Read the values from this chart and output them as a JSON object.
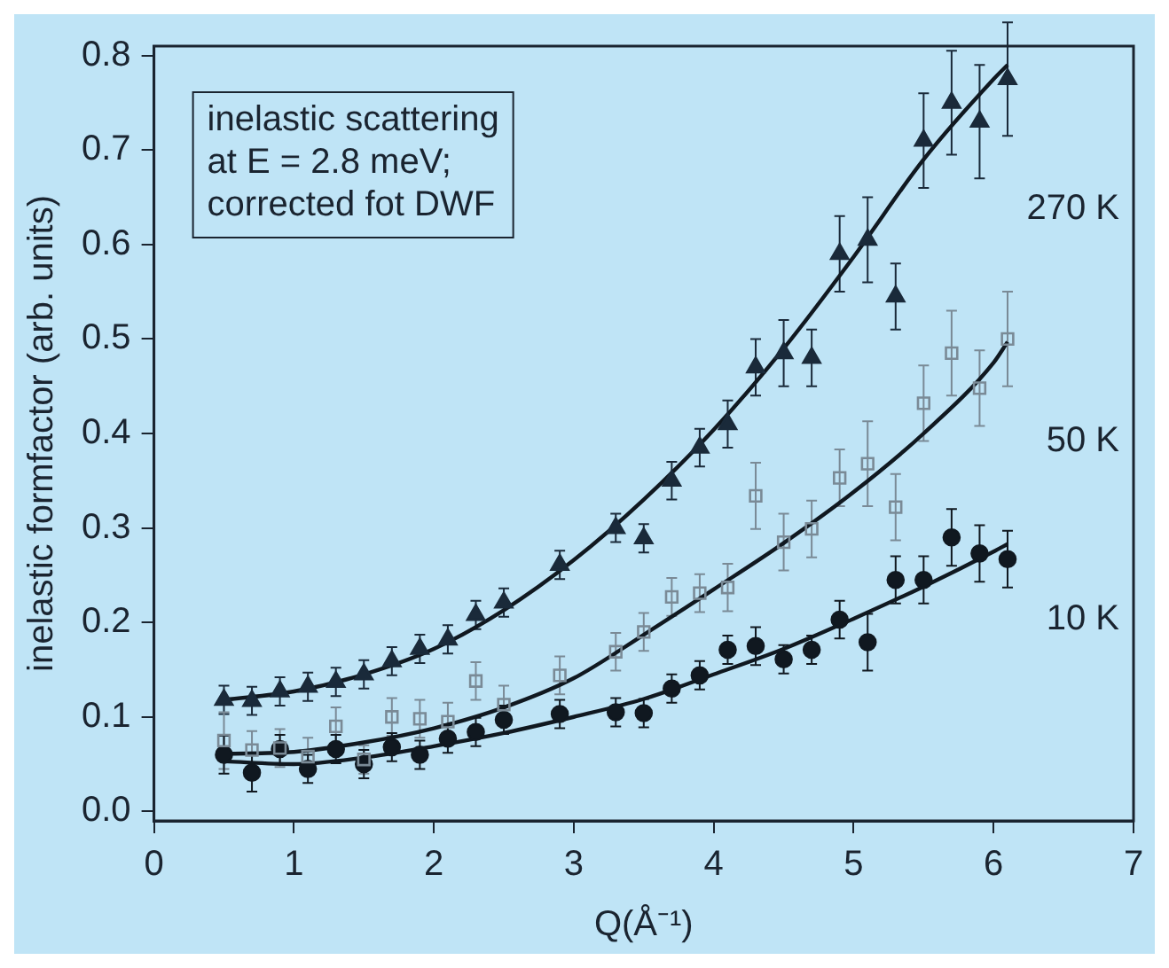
{
  "chart_data": {
    "type": "scatter",
    "xlabel": "Q(Å⁻¹)",
    "ylabel": "inelastic formfactor (arb. units)",
    "xlim": [
      0,
      7
    ],
    "xticks": [
      0,
      1,
      2,
      3,
      4,
      5,
      6,
      7
    ],
    "ylim": [
      -0.01,
      0.81
    ],
    "yticks": [
      {
        "value": 0,
        "label": "0.0"
      },
      0.1,
      0.2,
      0.3,
      0.4,
      0.5,
      0.6,
      0.7,
      0.8
    ],
    "grid": false,
    "legend": false,
    "annotations": [
      "inelastic scattering\nat E = 2.8 meV;\ncorrected fot DWF",
      "270 K",
      "50 K",
      "10 K"
    ],
    "series": [
      {
        "marker": "triangle",
        "color": "#1a2a3a",
        "x": [
          0.5,
          0.7,
          0.9,
          1.1,
          1.3,
          1.5,
          1.7,
          1.9,
          2.1,
          2.3,
          2.5,
          2.9,
          3.3,
          3.5,
          3.7,
          3.9,
          4.1,
          4.3,
          4.5,
          4.7,
          4.9,
          5.1,
          5.3,
          5.5,
          5.7,
          5.9,
          6.1
        ],
        "values": [
          0.118,
          0.117,
          0.127,
          0.132,
          0.137,
          0.145,
          0.159,
          0.172,
          0.182,
          0.208,
          0.221,
          0.261,
          0.3,
          0.289,
          0.35,
          0.385,
          0.41,
          0.47,
          0.485,
          0.48,
          0.59,
          0.605,
          0.545,
          0.71,
          0.75,
          0.73,
          0.775
        ],
        "errors": [
          0.015,
          0.015,
          0.015,
          0.015,
          0.015,
          0.015,
          0.015,
          0.015,
          0.015,
          0.015,
          0.015,
          0.015,
          0.015,
          0.015,
          0.02,
          0.02,
          0.025,
          0.03,
          0.035,
          0.03,
          0.04,
          0.045,
          0.035,
          0.05,
          0.055,
          0.06,
          0.06
        ]
      },
      {
        "marker": "square",
        "color": "#7a8a96",
        "x": [
          0.5,
          0.7,
          0.9,
          1.1,
          1.3,
          1.5,
          1.7,
          1.9,
          2.1,
          2.3,
          2.5,
          2.9,
          3.3,
          3.5,
          3.7,
          3.9,
          4.1,
          4.3,
          4.5,
          4.7,
          4.9,
          5.1,
          5.3,
          5.5,
          5.7,
          5.9,
          6.1
        ],
        "values": [
          0.075,
          0.065,
          0.067,
          0.058,
          0.09,
          0.055,
          0.1,
          0.098,
          0.095,
          0.138,
          0.113,
          0.144,
          0.169,
          0.19,
          0.227,
          0.231,
          0.237,
          0.334,
          0.285,
          0.299,
          0.353,
          0.368,
          0.322,
          0.432,
          0.485,
          0.448,
          0.5
        ],
        "errors": [
          0.03,
          0.02,
          0.02,
          0.02,
          0.02,
          0.015,
          0.02,
          0.02,
          0.02,
          0.02,
          0.02,
          0.02,
          0.02,
          0.02,
          0.02,
          0.02,
          0.025,
          0.035,
          0.03,
          0.03,
          0.03,
          0.045,
          0.035,
          0.04,
          0.045,
          0.04,
          0.05
        ]
      },
      {
        "marker": "circle",
        "color": "#101820",
        "x": [
          0.5,
          0.7,
          0.9,
          1.1,
          1.3,
          1.5,
          1.7,
          1.9,
          2.1,
          2.3,
          2.5,
          2.9,
          3.3,
          3.5,
          3.7,
          3.9,
          4.1,
          4.3,
          4.5,
          4.7,
          4.9,
          5.1,
          5.3,
          5.5,
          5.7,
          5.9,
          6.1
        ],
        "values": [
          0.06,
          0.041,
          0.066,
          0.045,
          0.066,
          0.05,
          0.068,
          0.06,
          0.077,
          0.084,
          0.097,
          0.103,
          0.105,
          0.104,
          0.13,
          0.144,
          0.171,
          0.175,
          0.161,
          0.171,
          0.203,
          0.179,
          0.245,
          0.245,
          0.29,
          0.273,
          0.267
        ],
        "errors": [
          0.02,
          0.02,
          0.015,
          0.015,
          0.015,
          0.015,
          0.015,
          0.015,
          0.015,
          0.015,
          0.015,
          0.015,
          0.015,
          0.015,
          0.015,
          0.015,
          0.015,
          0.02,
          0.015,
          0.015,
          0.02,
          0.03,
          0.025,
          0.025,
          0.03,
          0.03,
          0.03
        ]
      },
      {
        "type": "line",
        "color": "#101820",
        "x": [
          0.5,
          1,
          1.5,
          2,
          2.5,
          3,
          3.5,
          4,
          4.5,
          5,
          5.5,
          6,
          6.1
        ],
        "values": [
          0.118,
          0.127,
          0.145,
          0.172,
          0.213,
          0.266,
          0.33,
          0.404,
          0.49,
          0.587,
          0.69,
          0.775,
          0.79
        ]
      },
      {
        "type": "line",
        "color": "#101820",
        "x": [
          0.5,
          1,
          1.5,
          2,
          2.5,
          3,
          3.5,
          4,
          4.5,
          5,
          5.5,
          6,
          6.1
        ],
        "values": [
          0.061,
          0.063,
          0.073,
          0.088,
          0.11,
          0.141,
          0.187,
          0.235,
          0.284,
          0.338,
          0.4,
          0.475,
          0.497
        ]
      },
      {
        "type": "line",
        "color": "#101820",
        "x": [
          0.5,
          1,
          1.5,
          2,
          2.5,
          3,
          3.5,
          4,
          4.5,
          5,
          5.5,
          6,
          6.1
        ],
        "values": [
          0.053,
          0.05,
          0.057,
          0.069,
          0.083,
          0.1,
          0.119,
          0.145,
          0.172,
          0.204,
          0.238,
          0.275,
          0.283
        ]
      }
    ]
  }
}
